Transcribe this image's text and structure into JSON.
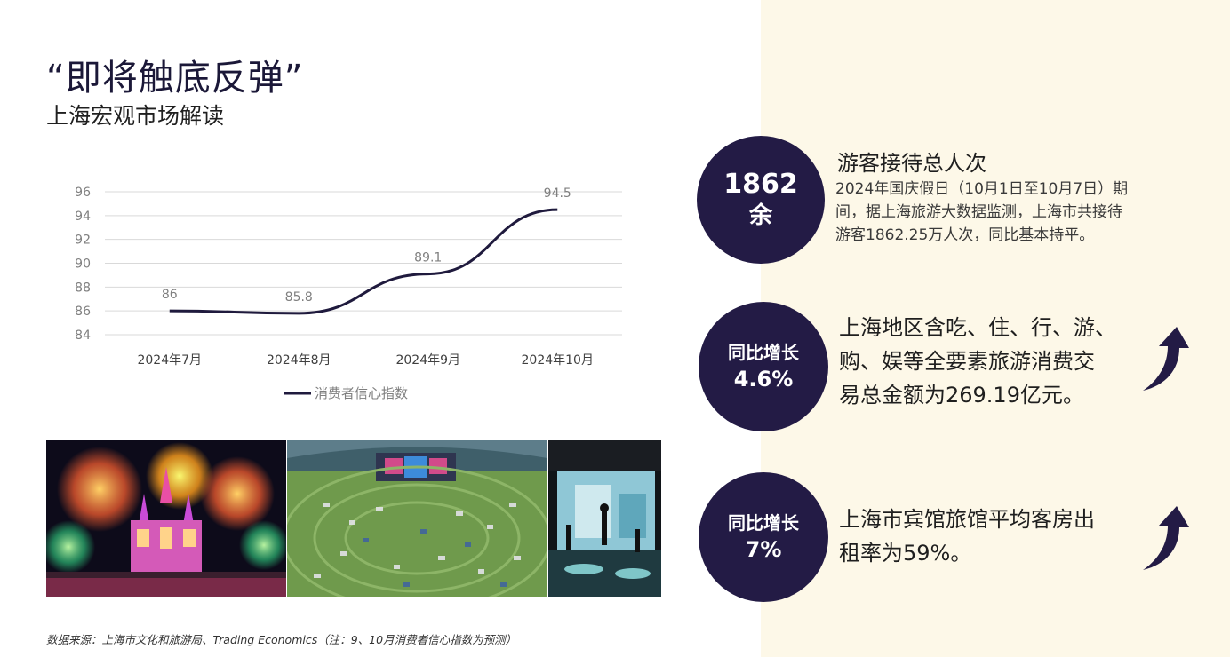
{
  "header": {
    "title": "“即将触底反弹”",
    "subtitle": "上海宏观市场解读"
  },
  "chart_data": {
    "type": "line",
    "categories": [
      "2024年7月",
      "2024年8月",
      "2024年9月",
      "2024年10月"
    ],
    "series": [
      {
        "name": "消费者信心指数",
        "values": [
          86,
          85.8,
          89.1,
          94.5
        ],
        "labels": [
          "86",
          "85.8",
          "89.1",
          "94.5"
        ]
      }
    ],
    "ylim": [
      84,
      96
    ],
    "yticks": [
      84,
      86,
      88,
      90,
      92,
      94,
      96
    ],
    "grid": true,
    "legend": "bottom",
    "line_color": "#1f1a3d"
  },
  "photos": [
    {
      "name": "castle-fireworks-photo"
    },
    {
      "name": "outdoor-festival-lawn-photo"
    },
    {
      "name": "stage-performance-photo"
    }
  ],
  "source_note": "数据来源：上海市文化和旅游局、Trading Economics（注：9、10月消费者信心指数为预测）",
  "stats": [
    {
      "circle_line1": "1862",
      "circle_line2": "余",
      "title": "游客接待总人次",
      "desc_lines": [
        "2024年国庆假日（10月1日至10月7日）期",
        "间，据上海旅游大数据监测，上海市共接待",
        "游客1862.25万人次，同比基本持平。"
      ]
    },
    {
      "circle_line1": "同比增长",
      "circle_line2": "4.6%",
      "text_lines": [
        "上海地区含吃、住、行、游、",
        "购、娱等全要素旅游消费交",
        "易总金额为269.19亿元。"
      ],
      "icon": "up-arrow-icon"
    },
    {
      "circle_line1": "同比增长",
      "circle_line2": "7%",
      "text_lines": [
        "上海市宾馆旅馆平均客房出",
        "租率为59%。"
      ],
      "icon": "up-arrow-icon"
    }
  ],
  "colors": {
    "navy": "#231b45",
    "panel": "#fdf8e8"
  }
}
